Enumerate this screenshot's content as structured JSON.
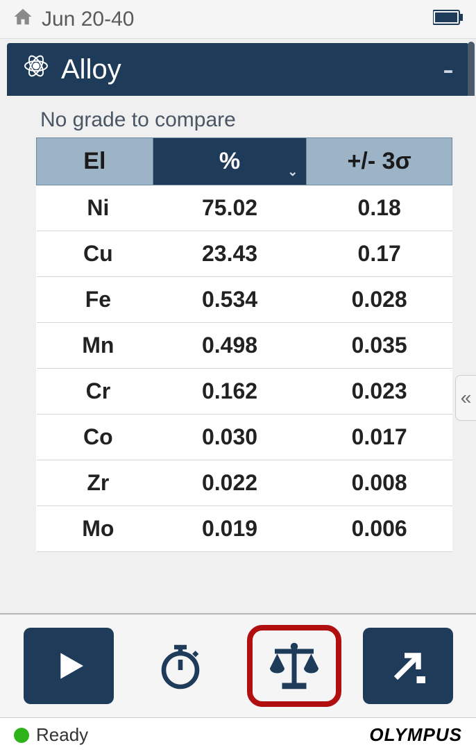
{
  "status": {
    "date_label": "Jun 20-40"
  },
  "titlebar": {
    "title": "Alloy"
  },
  "content": {
    "nograde_text": "No grade to compare",
    "table": {
      "columns": {
        "el": "El",
        "pct": "%",
        "sigma": "+/- 3σ"
      },
      "sorted_column": "pct",
      "rows": [
        {
          "el": "Ni",
          "pct": "75.02",
          "sigma": "0.18"
        },
        {
          "el": "Cu",
          "pct": "23.43",
          "sigma": "0.17"
        },
        {
          "el": "Fe",
          "pct": "0.534",
          "sigma": "0.028"
        },
        {
          "el": "Mn",
          "pct": "0.498",
          "sigma": "0.035"
        },
        {
          "el": "Cr",
          "pct": "0.162",
          "sigma": "0.023"
        },
        {
          "el": "Co",
          "pct": "0.030",
          "sigma": "0.017"
        },
        {
          "el": "Zr",
          "pct": "0.022",
          "sigma": "0.008"
        },
        {
          "el": "Mo",
          "pct": "0.019",
          "sigma": "0.006"
        }
      ]
    }
  },
  "footer": {
    "status_text": "Ready",
    "brand": "OLYMPUS"
  },
  "colors": {
    "primary": "#1f3b5a",
    "header_cell": "#9db4c6",
    "highlight_ring": "#b10f0f",
    "status_dot": "#2fb31a"
  }
}
